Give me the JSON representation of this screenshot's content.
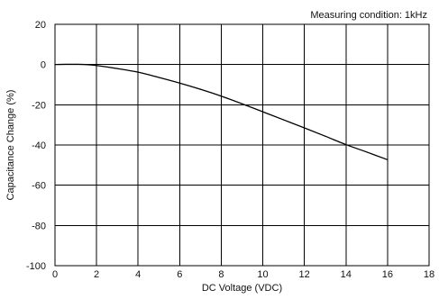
{
  "chart_data": {
    "type": "line",
    "annotation": "Measuring condition: 1kHz",
    "xlabel": "DC Voltage (VDC)",
    "ylabel": "Capacitance Change (%)",
    "xlim": [
      0,
      18
    ],
    "ylim": [
      -100,
      20
    ],
    "x_ticks": [
      "0",
      "2",
      "4",
      "6",
      "8",
      "10",
      "12",
      "14",
      "16",
      "18"
    ],
    "y_ticks": [
      "20",
      "0",
      "-20",
      "-40",
      "-60",
      "-80",
      "-100"
    ],
    "grid": true,
    "series": [
      {
        "x": [
          0,
          0.5,
          1,
          1.5,
          2,
          3,
          4,
          5,
          6,
          7,
          8,
          9,
          10,
          11,
          12,
          13,
          14,
          15,
          16
        ],
        "y": [
          0,
          0.1,
          0.1,
          0,
          -0.5,
          -2,
          -3.8,
          -6.4,
          -9.2,
          -12.3,
          -15.7,
          -19.5,
          -23.5,
          -27.5,
          -31.5,
          -35.6,
          -39.8,
          -43.5,
          -47.3
        ]
      }
    ]
  }
}
